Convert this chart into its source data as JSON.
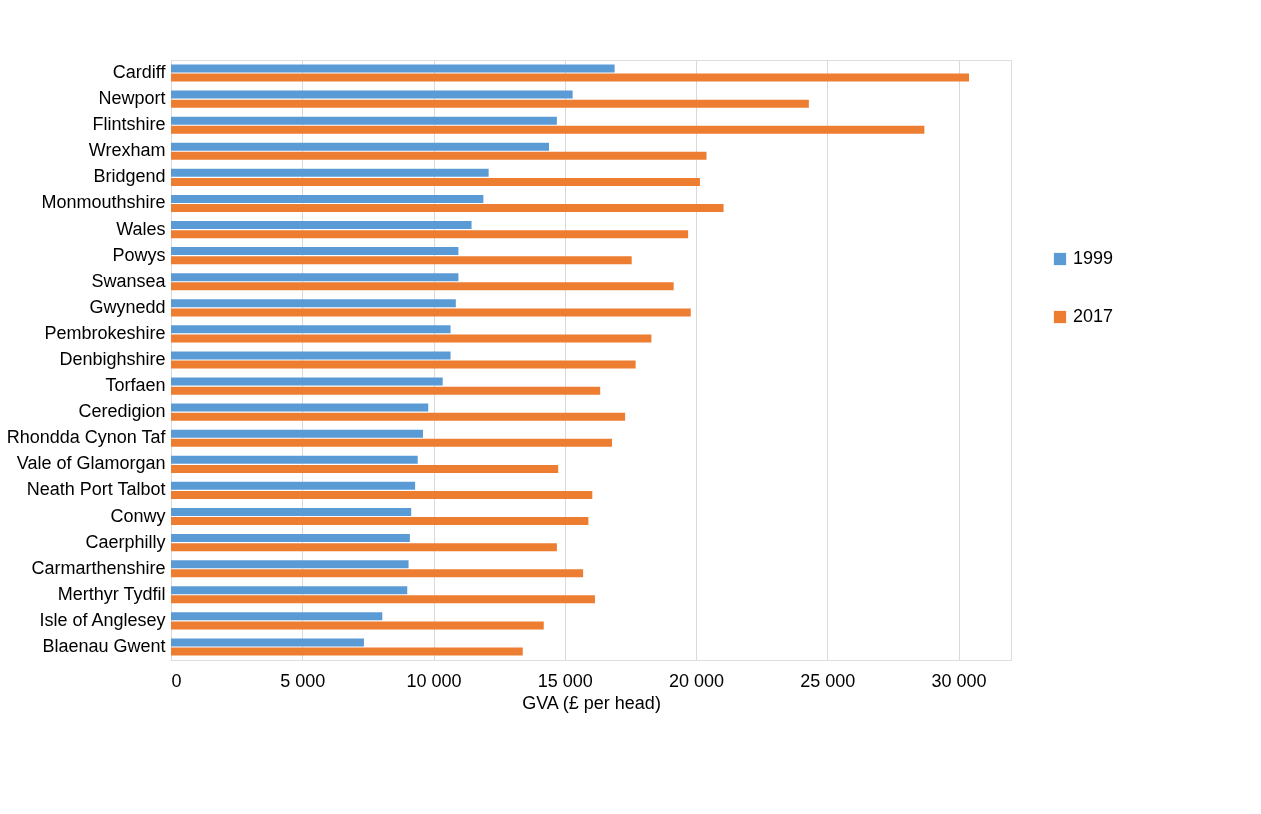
{
  "chart_data": {
    "type": "bar",
    "orientation": "horizontal",
    "xlabel": "GVA (£ per head)",
    "categories": [
      "Cardiff",
      "Newport",
      "Flintshire",
      "Wrexham",
      "Bridgend",
      "Monmouthshire",
      "Wales",
      "Powys",
      "Swansea",
      "Gwynedd",
      "Pembrokeshire",
      "Denbighshire",
      "Torfaen",
      "Ceredigion",
      "Rhondda Cynon Taf",
      "Vale of Glamorgan",
      "Neath Port Talbot",
      "Conwy",
      "Caerphilly",
      "Carmarthenshire",
      "Merthyr Tydfil",
      "Isle of Anglesey",
      "Blaenau Gwent"
    ],
    "series": [
      {
        "name": "1999",
        "color": "#5b9bd5",
        "values": [
          16900,
          15300,
          14700,
          14400,
          12100,
          11900,
          11450,
          10950,
          10950,
          10850,
          10650,
          10650,
          10350,
          9800,
          9600,
          9400,
          9300,
          9150,
          9100,
          9050,
          9000,
          8050,
          7350
        ]
      },
      {
        "name": "2017",
        "color": "#ed7d31",
        "values": [
          30400,
          24300,
          28700,
          20400,
          20150,
          21050,
          19700,
          17550,
          19150,
          19800,
          18300,
          17700,
          16350,
          17300,
          16800,
          14750,
          16050,
          15900,
          14700,
          15700,
          16150,
          14200,
          13400
        ]
      }
    ],
    "xlim": [
      0,
      32000
    ],
    "xticks": [
      0,
      {
        "value": 5000,
        "label": "5 000"
      },
      {
        "value": 10000,
        "label": "10 000"
      },
      {
        "value": 15000,
        "label": "15 000"
      },
      {
        "value": 20000,
        "label": "20 000"
      },
      {
        "value": 25000,
        "label": "25 000"
      },
      {
        "value": 30000,
        "label": "30 000"
      }
    ],
    "grid": "x",
    "legend": "right"
  }
}
